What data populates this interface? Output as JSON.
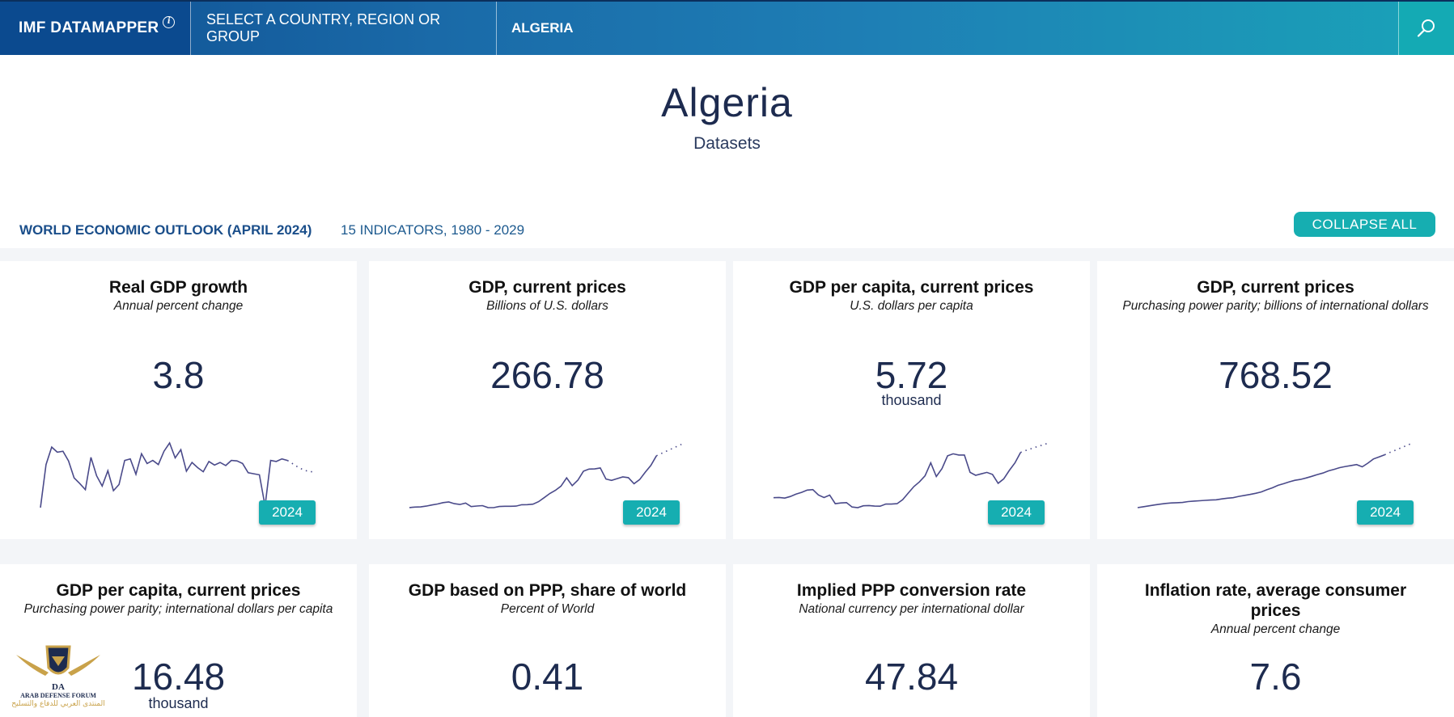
{
  "nav": {
    "brand": "IMF DATAMAPPER",
    "info_icon": "i",
    "select_label": "SELECT A COUNTRY, REGION OR GROUP",
    "country": "ALGERIA",
    "search_icon": "search-icon"
  },
  "header": {
    "title": "Algeria",
    "subtitle": "Datasets"
  },
  "dataset": {
    "name": "WORLD ECONOMIC OUTLOOK (APRIL 2024)",
    "meta": "15 INDICATORS, 1980 - 2029",
    "collapse_label": "COLLAPSE ALL"
  },
  "colors": {
    "accent": "#16aeb1",
    "nav_dark": "#0b4a8f",
    "text_dark": "#1d2b4f",
    "spark_line": "#4a4a8a"
  },
  "cards": [
    {
      "title": "Real GDP growth",
      "unit": "Annual percent change",
      "value": "3.8",
      "scale": "",
      "year": "2024",
      "series": [
        -5.4,
        3.0,
        6.4,
        5.4,
        5.6,
        3.7,
        0.4,
        -0.7,
        -1.9,
        4.4,
        0.8,
        -1.2,
        1.8,
        -2.1,
        -0.9,
        3.8,
        4.1,
        1.1,
        5.1,
        3.2,
        3.8,
        3.0,
        5.6,
        7.2,
        4.3,
        5.9,
        1.7,
        3.4,
        2.4,
        1.6,
        3.6,
        2.9,
        3.4,
        2.8,
        3.8,
        3.7,
        3.2,
        1.4,
        1.2,
        1.0,
        -5.1,
        3.8,
        3.6,
        4.1,
        3.8,
        3.1,
        2.4,
        1.9,
        1.6,
        1.6
      ]
    },
    {
      "title": "GDP, current prices",
      "unit": "Billions of U.S. dollars",
      "value": "266.78",
      "scale": "",
      "year": "2024",
      "series": [
        42.3,
        44.4,
        45.2,
        48.8,
        53.7,
        57.9,
        63.7,
        66.7,
        59.1,
        55.6,
        62.0,
        46.7,
        49.2,
        50.9,
        42.5,
        42.1,
        46.9,
        48.2,
        48.2,
        48.8,
        54.8,
        55.2,
        57.1,
        68.0,
        85.3,
        103.2,
        117.0,
        135.0,
        171.0,
        137.2,
        161.2,
        200.0,
        209.0,
        209.7,
        213.8,
        165.9,
        160.1,
        167.6,
        174.9,
        171.8,
        145.7,
        163.5,
        195.0,
        224.9,
        266.8,
        278.0,
        289.0,
        300.0,
        311.0,
        322.0
      ]
    },
    {
      "title": "GDP per capita, current prices",
      "unit": "U.S. dollars per capita",
      "value": "5.72",
      "scale": "thousand",
      "year": "2024",
      "series": [
        2.26,
        2.28,
        2.23,
        2.35,
        2.53,
        2.67,
        2.84,
        2.88,
        2.47,
        2.27,
        2.46,
        1.8,
        1.86,
        1.88,
        1.55,
        1.5,
        1.64,
        1.66,
        1.62,
        1.61,
        1.78,
        1.77,
        1.8,
        2.11,
        2.61,
        3.11,
        3.47,
        3.94,
        4.92,
        3.88,
        4.48,
        5.46,
        5.61,
        5.52,
        5.52,
        4.2,
        3.97,
        4.08,
        4.19,
        4.04,
        3.36,
        3.7,
        4.34,
        4.92,
        5.72,
        5.88,
        6.02,
        6.16,
        6.3,
        6.44
      ]
    },
    {
      "title": "GDP, current prices",
      "unit": "Purchasing power parity; billions of international dollars",
      "value": "768.52",
      "scale": "",
      "year": "2024",
      "series": [
        88,
        99,
        111,
        122,
        133,
        142,
        148,
        151,
        155,
        166,
        172,
        176,
        182,
        186,
        189,
        200,
        210,
        216,
        233,
        245,
        258,
        272,
        290,
        318,
        343,
        375,
        396,
        420,
        440,
        451,
        470,
        490,
        513,
        533,
        561,
        581,
        603,
        617,
        630,
        642,
        613,
        660,
        714,
        741,
        768,
        800,
        830,
        860,
        890,
        920
      ]
    },
    {
      "title": "GDP per capita, current prices",
      "unit": "Purchasing power parity; international dollars per capita",
      "value": "16.48",
      "scale": "thousand",
      "year": ""
    },
    {
      "title": "GDP based on PPP, share of world",
      "unit": "Percent of World",
      "value": "0.41",
      "scale": "",
      "year": ""
    },
    {
      "title": "Implied PPP conversion rate",
      "unit": "National currency per international dollar",
      "value": "47.84",
      "scale": "",
      "year": ""
    },
    {
      "title": "Inflation rate, average consumer prices",
      "unit": "Annual percent change",
      "value": "7.6",
      "scale": "",
      "year": ""
    }
  ],
  "watermark": {
    "initials": "DA",
    "name": "ARAB DEFENSE FORUM",
    "arabic": "المنتدى العربي للدفاع والتسليح"
  }
}
